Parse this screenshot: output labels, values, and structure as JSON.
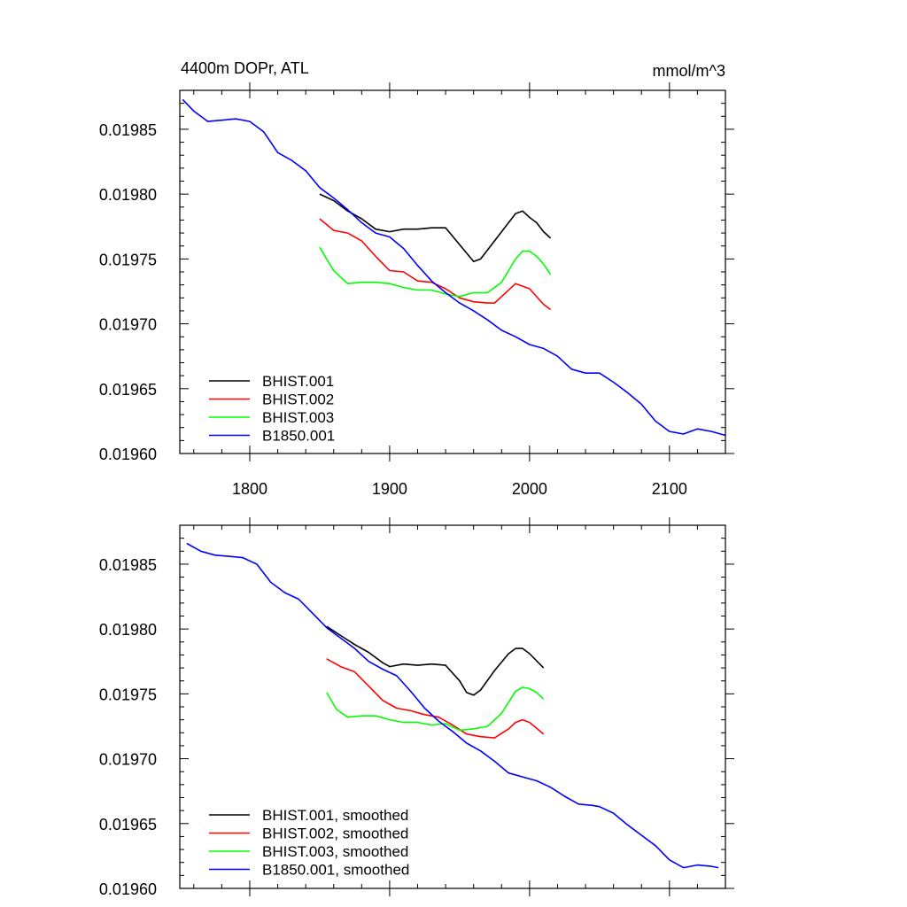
{
  "chart_data": [
    {
      "type": "line",
      "title_left": "4400m DOPr, ATL",
      "title_right": "mmol/m^3",
      "xlim": [
        1750,
        2140
      ],
      "ylim": [
        0.0196,
        0.01988
      ],
      "x_ticks": [
        1800,
        1900,
        2000,
        2100
      ],
      "x_tick_labels": [
        "1800",
        "1900",
        "2000",
        "2100"
      ],
      "y_ticks": [
        0.0196,
        0.01965,
        0.0197,
        0.01975,
        0.0198,
        0.01985
      ],
      "y_tick_labels": [
        "0.01960",
        "0.01965",
        "0.01970",
        "0.01975",
        "0.01980",
        "0.01985"
      ],
      "legend_position": "bottom-left",
      "series": [
        {
          "name": "BHIST.001",
          "color": "#000000",
          "x": [
            1850,
            1860,
            1870,
            1880,
            1890,
            1900,
            1910,
            1920,
            1930,
            1940,
            1950,
            1960,
            1965,
            1970,
            1980,
            1990,
            1995,
            2000,
            2005,
            2010,
            2015
          ],
          "y": [
            0.0198,
            0.019795,
            0.019787,
            0.019781,
            0.019773,
            0.019771,
            0.019773,
            0.019773,
            0.019774,
            0.019774,
            0.019761,
            0.019748,
            0.01975,
            0.019757,
            0.019771,
            0.019785,
            0.019787,
            0.019782,
            0.019778,
            0.019771,
            0.019766
          ]
        },
        {
          "name": "BHIST.002",
          "color": "#ff0000",
          "x": [
            1850,
            1860,
            1870,
            1880,
            1890,
            1900,
            1910,
            1920,
            1930,
            1940,
            1950,
            1960,
            1970,
            1975,
            1980,
            1990,
            2000,
            2010,
            2015
          ],
          "y": [
            0.019781,
            0.019772,
            0.01977,
            0.019764,
            0.019752,
            0.019741,
            0.01974,
            0.019733,
            0.019732,
            0.019727,
            0.01972,
            0.019717,
            0.019716,
            0.019716,
            0.019721,
            0.019731,
            0.019727,
            0.019715,
            0.019711
          ]
        },
        {
          "name": "BHIST.003",
          "color": "#00ff00",
          "x": [
            1850,
            1860,
            1870,
            1880,
            1890,
            1900,
            1910,
            1920,
            1930,
            1940,
            1950,
            1960,
            1970,
            1980,
            1990,
            1995,
            2000,
            2005,
            2010,
            2015
          ],
          "y": [
            0.019759,
            0.019741,
            0.019731,
            0.019732,
            0.019732,
            0.019731,
            0.019728,
            0.019726,
            0.019726,
            0.019723,
            0.019721,
            0.019724,
            0.019724,
            0.019732,
            0.01975,
            0.019756,
            0.019756,
            0.019752,
            0.019746,
            0.019738
          ]
        },
        {
          "name": "B1850.001",
          "color": "#0000ff",
          "x": [
            1752,
            1760,
            1770,
            1780,
            1790,
            1800,
            1810,
            1820,
            1830,
            1840,
            1850,
            1860,
            1870,
            1880,
            1890,
            1900,
            1910,
            1920,
            1930,
            1940,
            1950,
            1960,
            1970,
            1980,
            1990,
            2000,
            2010,
            2020,
            2030,
            2040,
            2050,
            2060,
            2070,
            2080,
            2090,
            2100,
            2110,
            2120,
            2130,
            2140
          ],
          "y": [
            0.019873,
            0.019864,
            0.019856,
            0.019857,
            0.019858,
            0.019856,
            0.019848,
            0.019832,
            0.019826,
            0.019818,
            0.019805,
            0.019797,
            0.019788,
            0.019778,
            0.01977,
            0.019767,
            0.019758,
            0.019745,
            0.019733,
            0.019724,
            0.019716,
            0.01971,
            0.019703,
            0.019695,
            0.01969,
            0.019684,
            0.019681,
            0.019675,
            0.019665,
            0.019662,
            0.019662,
            0.019655,
            0.019647,
            0.019638,
            0.019625,
            0.019617,
            0.019615,
            0.019619,
            0.019617,
            0.019614
          ]
        }
      ]
    },
    {
      "type": "line",
      "xlim": [
        1750,
        2140
      ],
      "ylim": [
        0.0196,
        0.01988
      ],
      "x_ticks": [
        1800,
        1900,
        2000,
        2100
      ],
      "y_ticks": [
        0.0196,
        0.01965,
        0.0197,
        0.01975,
        0.0198,
        0.01985
      ],
      "y_tick_labels": [
        "0.01960",
        "0.01965",
        "0.01970",
        "0.01975",
        "0.01980",
        "0.01985"
      ],
      "legend_position": "bottom-left",
      "series": [
        {
          "name": "BHIST.001, smoothed",
          "color": "#000000",
          "x": [
            1855,
            1865,
            1875,
            1885,
            1895,
            1900,
            1910,
            1920,
            1930,
            1940,
            1950,
            1955,
            1960,
            1965,
            1975,
            1985,
            1990,
            1995,
            2000,
            2010
          ],
          "y": [
            0.019802,
            0.019795,
            0.019788,
            0.019782,
            0.019774,
            0.019771,
            0.019773,
            0.019772,
            0.019773,
            0.019772,
            0.01976,
            0.019751,
            0.019749,
            0.019753,
            0.019768,
            0.019781,
            0.019785,
            0.019785,
            0.019781,
            0.01977
          ]
        },
        {
          "name": "BHIST.002, smoothed",
          "color": "#ff0000",
          "x": [
            1855,
            1865,
            1875,
            1885,
            1895,
            1905,
            1915,
            1925,
            1935,
            1945,
            1955,
            1965,
            1975,
            1985,
            1990,
            1995,
            2000,
            2010
          ],
          "y": [
            0.019777,
            0.019771,
            0.019767,
            0.019756,
            0.019745,
            0.019739,
            0.019737,
            0.019734,
            0.019732,
            0.019726,
            0.019719,
            0.019717,
            0.019716,
            0.019723,
            0.019728,
            0.01973,
            0.019728,
            0.019719
          ]
        },
        {
          "name": "BHIST.003, smoothed",
          "color": "#00ff00",
          "x": [
            1855,
            1862,
            1870,
            1880,
            1890,
            1900,
            1910,
            1920,
            1930,
            1940,
            1950,
            1960,
            1970,
            1980,
            1990,
            1995,
            2000,
            2005,
            2010
          ],
          "y": [
            0.019751,
            0.019738,
            0.019732,
            0.019733,
            0.019733,
            0.01973,
            0.019728,
            0.019728,
            0.019726,
            0.019727,
            0.019722,
            0.019723,
            0.019725,
            0.019735,
            0.019752,
            0.019755,
            0.019754,
            0.019751,
            0.019746
          ]
        },
        {
          "name": "B1850.001, smoothed",
          "color": "#0000ff",
          "x": [
            1755,
            1765,
            1775,
            1785,
            1795,
            1805,
            1815,
            1825,
            1835,
            1845,
            1855,
            1865,
            1875,
            1885,
            1895,
            1905,
            1915,
            1925,
            1935,
            1945,
            1955,
            1965,
            1975,
            1985,
            1995,
            2005,
            2015,
            2025,
            2035,
            2045,
            2050,
            2060,
            2070,
            2080,
            2090,
            2100,
            2110,
            2120,
            2130,
            2135
          ],
          "y": [
            0.019866,
            0.01986,
            0.019857,
            0.019856,
            0.019855,
            0.01985,
            0.019836,
            0.019828,
            0.019823,
            0.019812,
            0.019801,
            0.019793,
            0.019785,
            0.019775,
            0.019769,
            0.019764,
            0.019752,
            0.019739,
            0.019729,
            0.019721,
            0.019712,
            0.019706,
            0.019698,
            0.019689,
            0.019686,
            0.019683,
            0.019678,
            0.019671,
            0.019665,
            0.019664,
            0.019663,
            0.019658,
            0.019649,
            0.019641,
            0.019633,
            0.019622,
            0.019616,
            0.019618,
            0.019617,
            0.019616
          ]
        }
      ]
    }
  ]
}
